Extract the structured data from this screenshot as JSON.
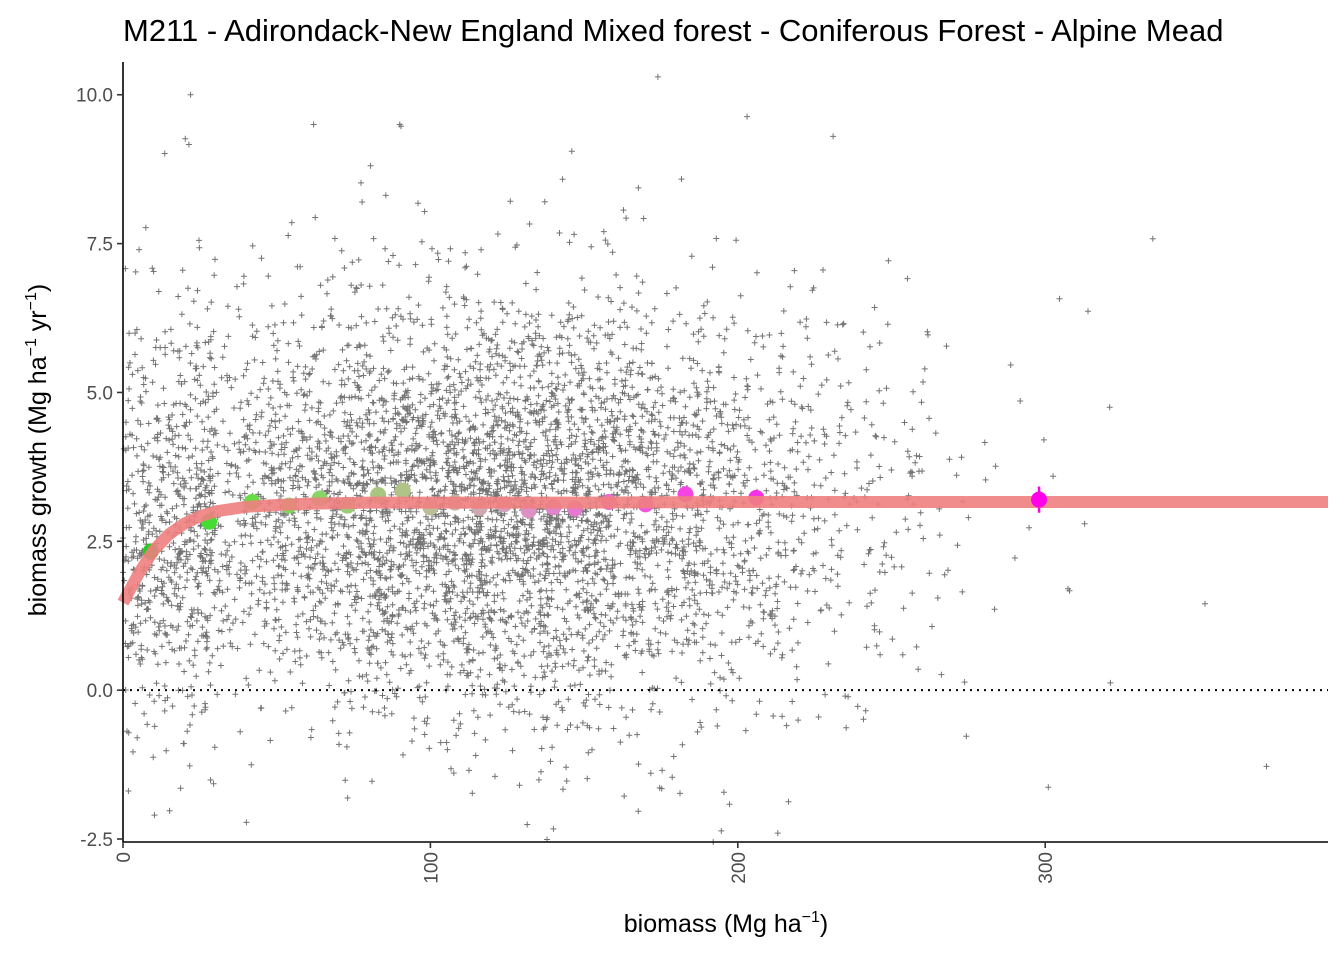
{
  "chart_data": {
    "type": "scatter",
    "title": "M211 - Adirondack-New England Mixed forest - Coniferous Forest - Alpine Mead",
    "xlabel": {
      "text": "biomass (Mg ha",
      "sup": "−1",
      "close": ")"
    },
    "ylabel": {
      "text": "biomass growth (Mg ha",
      "sup1": "−1",
      "mid": " yr",
      "sup2": "−1",
      "close": ")"
    },
    "xlim": [
      0,
      392
    ],
    "ylim": [
      -2.55,
      10.55
    ],
    "x_ticks": [
      0,
      100,
      200,
      300
    ],
    "x_tick_labels": [
      "0",
      "100",
      "200",
      "300"
    ],
    "y_ticks": [
      -2.5,
      0,
      2.5,
      5,
      7.5,
      10
    ],
    "y_tick_labels": [
      "-2.5",
      "0.0",
      "2.5",
      "5.0",
      "7.5",
      "10.0"
    ],
    "grid": false,
    "reference_line": {
      "y": 0,
      "style": "dotted"
    },
    "scatter_points": {
      "marker": "+",
      "count_approx": 5500,
      "color": "#000000",
      "x_center": 120,
      "x_spread": 60,
      "y_center": 3.1,
      "y_spread": 1.75,
      "sample_outliers": [
        {
          "x": 22,
          "y": 10.0
        },
        {
          "x": 174,
          "y": 10.3
        },
        {
          "x": 62,
          "y": 9.5
        },
        {
          "x": 90,
          "y": 9.5
        },
        {
          "x": 231,
          "y": 9.3
        },
        {
          "x": 146,
          "y": 9.05
        },
        {
          "x": 335,
          "y": 7.58
        },
        {
          "x": 372,
          "y": -1.28
        },
        {
          "x": 301,
          "y": -1.63
        },
        {
          "x": 140,
          "y": -2.33
        },
        {
          "x": 192,
          "y": -2.55
        },
        {
          "x": 213,
          "y": -2.4
        },
        {
          "x": 352,
          "y": 1.45
        },
        {
          "x": 321,
          "y": 4.75
        }
      ]
    },
    "fitted_curve": {
      "color": "#f08080",
      "x": [
        0,
        5,
        10,
        15,
        20,
        25,
        30,
        40,
        50,
        60,
        80,
        100,
        150,
        200,
        250,
        300,
        350,
        392
      ],
      "y": [
        1.47,
        1.95,
        2.35,
        2.62,
        2.8,
        2.92,
        3.0,
        3.08,
        3.11,
        3.13,
        3.15,
        3.15,
        3.15,
        3.16,
        3.16,
        3.16,
        3.16,
        3.16
      ]
    },
    "binned_means": [
      {
        "x": 9,
        "y": 2.33,
        "color": "#22cc22"
      },
      {
        "x": 28,
        "y": 2.83,
        "color": "#44dd33"
      },
      {
        "x": 42,
        "y": 3.16,
        "color": "#66dd44"
      },
      {
        "x": 54,
        "y": 3.1,
        "color": "#77dd55"
      },
      {
        "x": 64,
        "y": 3.22,
        "color": "#88d566"
      },
      {
        "x": 73,
        "y": 3.1,
        "color": "#99cc77"
      },
      {
        "x": 83,
        "y": 3.28,
        "color": "#a8c680"
      },
      {
        "x": 91,
        "y": 3.35,
        "color": "#b0c488"
      },
      {
        "x": 100,
        "y": 3.07,
        "color": "#bcbc99"
      },
      {
        "x": 108,
        "y": 3.15,
        "color": "#c4b4a4"
      },
      {
        "x": 116,
        "y": 3.06,
        "color": "#ccaab0"
      },
      {
        "x": 124,
        "y": 3.12,
        "color": "#d4a0bb"
      },
      {
        "x": 132,
        "y": 3.02,
        "color": "#dd90c4"
      },
      {
        "x": 140,
        "y": 3.07,
        "color": "#e284cc"
      },
      {
        "x": 147,
        "y": 3.05,
        "color": "#e678d2"
      },
      {
        "x": 158,
        "y": 3.16,
        "color": "#ec66d8"
      },
      {
        "x": 170,
        "y": 3.12,
        "color": "#f055de"
      },
      {
        "x": 183,
        "y": 3.29,
        "color": "#f444e2"
      },
      {
        "x": 206,
        "y": 3.23,
        "color": "#f833e6"
      },
      {
        "x": 298,
        "y": 3.2,
        "color": "#ff00e8",
        "error": 0.22
      }
    ]
  }
}
